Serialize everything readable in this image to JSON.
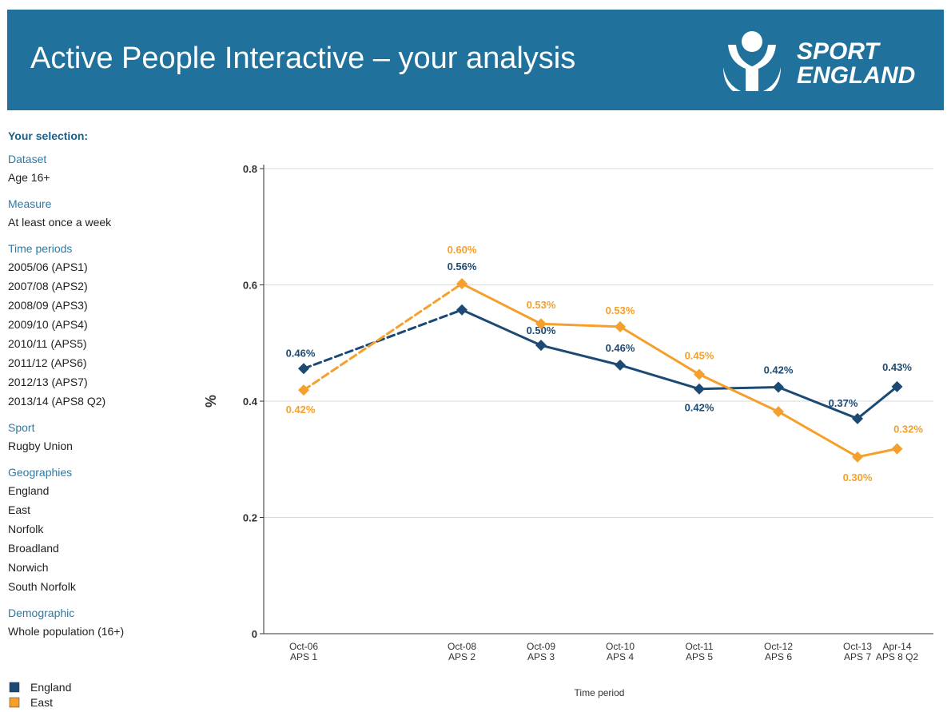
{
  "header": {
    "title": "Active People Interactive – your analysis",
    "logo_line1": "SPORT",
    "logo_line2": "ENGLAND"
  },
  "selection": {
    "title": "Your selection:",
    "sections": [
      {
        "label": "Dataset",
        "values": [
          "Age 16+"
        ]
      },
      {
        "label": "Measure",
        "values": [
          "At least once a week"
        ]
      },
      {
        "label": "Time periods",
        "values": [
          "2005/06 (APS1)",
          "2007/08 (APS2)",
          "2008/09 (APS3)",
          "2009/10 (APS4)",
          "2010/11 (APS5)",
          "2011/12 (APS6)",
          "2012/13 (APS7)",
          "2013/14 (APS8 Q2)"
        ]
      },
      {
        "label": "Sport",
        "values": [
          "Rugby Union"
        ]
      },
      {
        "label": "Geographies",
        "values": [
          "England",
          "East",
          "Norfolk",
          "Broadland",
          "Norwich",
          "South Norfolk"
        ]
      },
      {
        "label": "Demographic",
        "values": [
          "Whole population (16+)"
        ]
      }
    ]
  },
  "chart_data": {
    "type": "line",
    "categories": [
      "Oct-06",
      "Oct-08",
      "Oct-09",
      "Oct-10",
      "Oct-11",
      "Oct-12",
      "Oct-13",
      "Apr-14"
    ],
    "category_sublabels": [
      "APS 1",
      "APS 2",
      "APS 3",
      "APS 4",
      "APS 5",
      "APS 6",
      "APS 7",
      "APS 8 Q2"
    ],
    "series": [
      {
        "name": "England",
        "color": "#1c4a74",
        "values": [
          0.456,
          0.557,
          0.496,
          0.462,
          0.421,
          0.424,
          0.37,
          0.425
        ],
        "value_labels": [
          "0.46%",
          "0.56%",
          "0.50%",
          "0.46%",
          "0.42%",
          "0.42%",
          "0.37%",
          "0.43%"
        ]
      },
      {
        "name": "East",
        "color": "#f5a02c",
        "values": [
          0.419,
          0.602,
          0.533,
          0.528,
          0.446,
          0.382,
          0.304,
          0.318
        ],
        "value_labels": [
          "0.42%",
          "0.60%",
          "0.53%",
          "0.53%",
          "0.45%",
          null,
          "0.30%",
          "0.32%"
        ]
      }
    ],
    "ylabel": "%",
    "xlabel": "Time period",
    "ylim": [
      0,
      0.8
    ],
    "yticks": [
      0,
      0.2,
      0.4,
      0.6,
      0.8
    ],
    "grid": true,
    "legend": "bottom-left"
  }
}
